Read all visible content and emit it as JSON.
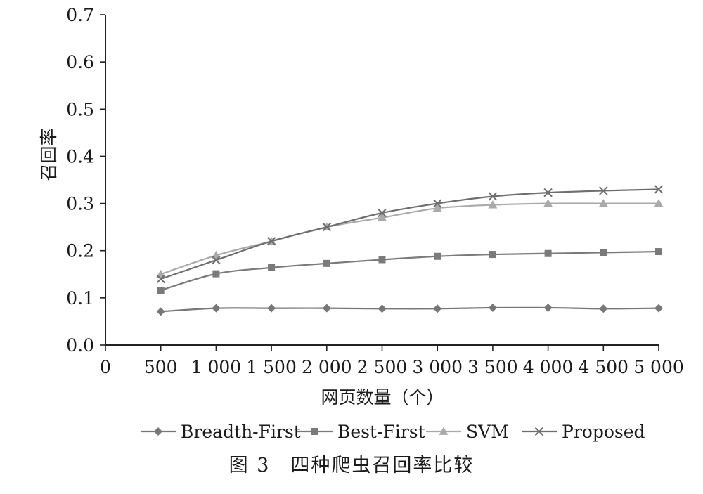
{
  "chart_data": {
    "type": "line",
    "xlabel": "网页数量（个）",
    "ylabel": "召回率",
    "x_ticks": [
      "0",
      "500",
      "1 000",
      "1 500",
      "2 000",
      "2 500",
      "3 000",
      "3 500",
      "4 000",
      "4 500",
      "5 000"
    ],
    "y_ticks": [
      "0.0",
      "0.1",
      "0.2",
      "0.3",
      "0.4",
      "0.5",
      "0.6",
      "0.7"
    ],
    "xlim": [
      0,
      5000
    ],
    "ylim": [
      0,
      0.7
    ],
    "grid": false,
    "legend_position": "bottom",
    "x": [
      500,
      1000,
      1500,
      2000,
      2500,
      3000,
      3500,
      4000,
      4500,
      5000
    ],
    "series": [
      {
        "name": "Breadth-First",
        "marker": "diamond",
        "color": "#777777",
        "values": [
          0.071,
          0.078,
          0.078,
          0.078,
          0.077,
          0.077,
          0.079,
          0.079,
          0.077,
          0.078
        ]
      },
      {
        "name": "Best-First",
        "marker": "square",
        "color": "#7a7a7a",
        "values": [
          0.116,
          0.151,
          0.164,
          0.173,
          0.181,
          0.188,
          0.192,
          0.194,
          0.196,
          0.198
        ]
      },
      {
        "name": "SVM",
        "marker": "triangle",
        "color": "#aaaaaa",
        "values": [
          0.15,
          0.19,
          0.22,
          0.25,
          0.27,
          0.29,
          0.297,
          0.3,
          0.3,
          0.3
        ]
      },
      {
        "name": "Proposed",
        "marker": "x",
        "color": "#6e6e6e",
        "values": [
          0.14,
          0.18,
          0.22,
          0.25,
          0.28,
          0.3,
          0.315,
          0.323,
          0.327,
          0.33
        ]
      }
    ]
  },
  "caption": "图 3　四种爬虫召回率比较"
}
